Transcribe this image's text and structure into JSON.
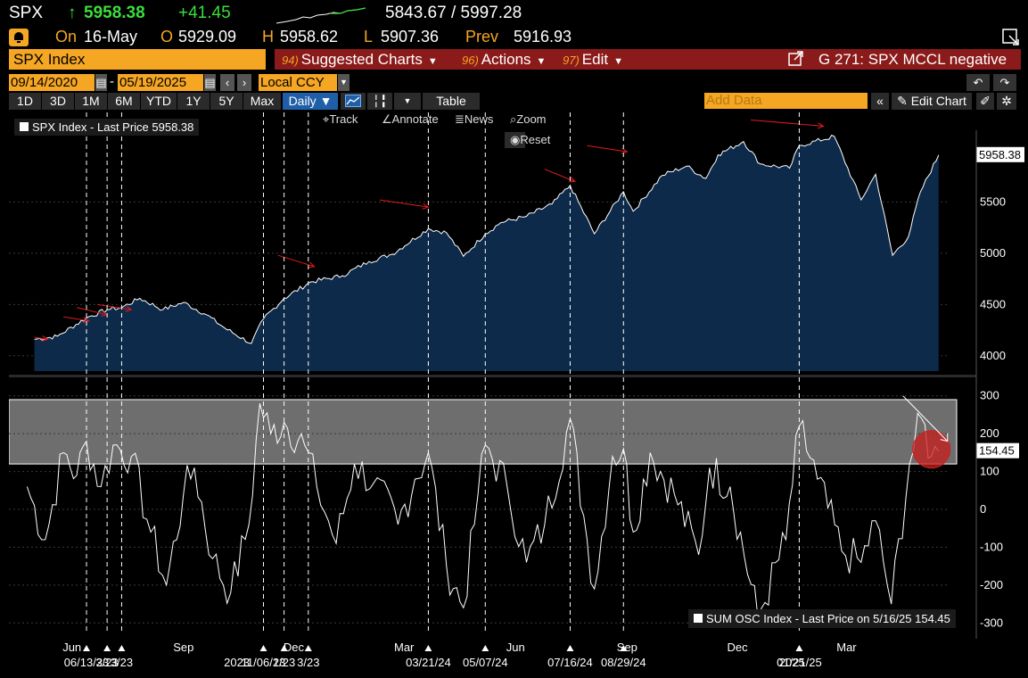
{
  "header": {
    "ticker": "SPX",
    "arrow": "↑",
    "last": "5958.38",
    "change": "+41.45",
    "range": "5843.67 / 5997.28",
    "on_label": "On",
    "date": "16-May",
    "open_label": "O",
    "open": "5929.09",
    "high_label": "H",
    "high": "5958.62",
    "low_label": "L",
    "low": "5907.36",
    "prev_label": "Prev",
    "prev": "5916.93"
  },
  "toolbar": {
    "security": "SPX Index",
    "menus": [
      {
        "num": "94)",
        "label": "Suggested Charts"
      },
      {
        "num": "96)",
        "label": "Actions"
      },
      {
        "num": "97)",
        "label": "Edit"
      }
    ],
    "chart_title": "G 271: SPX MCCL negative"
  },
  "dates": {
    "start": "09/14/2020",
    "sep": "-",
    "end": "05/19/2025",
    "currency": "Local CCY",
    "frequency": "Daily"
  },
  "periods": [
    "1D",
    "3D",
    "1M",
    "6M",
    "YTD",
    "1Y",
    "5Y",
    "Max"
  ],
  "table_label": "Table",
  "add_data_placeholder": "Add Data",
  "edit_chart": "Edit Chart",
  "tools": {
    "track": "Track",
    "annotate": "Annotate",
    "news": "News",
    "zoom": "Zoom",
    "reset": "Reset"
  },
  "legend_top": "SPX Index - Last Price 5958.38",
  "legend_bottom": "SUM OSC Index - Last Price on 5/16/25 154.45",
  "colors": {
    "accent": "#f5a623",
    "menu_bar": "#8b1a1a",
    "area_fill": "#0d2a4a",
    "arrows": "#e01b1b",
    "up": "#3ddc3d"
  },
  "chart_data": [
    {
      "type": "area",
      "series": [
        {
          "name": "SPX Index",
          "last": 5958.38
        }
      ],
      "y_ticks": [
        4000,
        4500,
        5000,
        5500
      ],
      "ylim": [
        3850,
        6200
      ],
      "last_label": "5958.38",
      "points": [
        [
          "2023-05-01",
          4160
        ],
        [
          "2023-05-20",
          4190
        ],
        [
          "2023-06-13",
          4370
        ],
        [
          "2023-06-30",
          4450
        ],
        [
          "2023-07-12",
          4470
        ],
        [
          "2023-07-27",
          4560
        ],
        [
          "2023-08-15",
          4450
        ],
        [
          "2023-09-01",
          4520
        ],
        [
          "2023-09-20",
          4400
        ],
        [
          "2023-10-05",
          4270
        ],
        [
          "2023-10-27",
          4120
        ],
        [
          "2023-11-06",
          4360
        ],
        [
          "2023-11-23",
          4560
        ],
        [
          "2023-12-15",
          4720
        ],
        [
          "2024-01-10",
          4780
        ],
        [
          "2024-02-01",
          4920
        ],
        [
          "2024-02-20",
          4990
        ],
        [
          "2024-03-21",
          5240
        ],
        [
          "2024-04-05",
          5200
        ],
        [
          "2024-04-19",
          4970
        ],
        [
          "2024-05-07",
          5190
        ],
        [
          "2024-05-20",
          5300
        ],
        [
          "2024-06-10",
          5360
        ],
        [
          "2024-07-01",
          5480
        ],
        [
          "2024-07-16",
          5660
        ],
        [
          "2024-08-05",
          5190
        ],
        [
          "2024-08-29",
          5600
        ],
        [
          "2024-09-06",
          5410
        ],
        [
          "2024-09-30",
          5760
        ],
        [
          "2024-10-20",
          5850
        ],
        [
          "2024-11-05",
          5730
        ],
        [
          "2024-11-15",
          5960
        ],
        [
          "2024-12-06",
          6090
        ],
        [
          "2024-12-20",
          5870
        ],
        [
          "2025-01-13",
          5830
        ],
        [
          "2025-01-21",
          6050
        ],
        [
          "2025-02-19",
          6140
        ],
        [
          "2025-03-13",
          5520
        ],
        [
          "2025-03-25",
          5770
        ],
        [
          "2025-04-08",
          4980
        ],
        [
          "2025-04-21",
          5160
        ],
        [
          "2025-05-01",
          5600
        ],
        [
          "2025-05-16",
          5958
        ]
      ],
      "arrows": [
        [
          "2023-05-01",
          4180,
          "2023-05-12",
          4160
        ],
        [
          "2023-05-25",
          4380,
          "2023-06-15",
          4340
        ],
        [
          "2023-06-05",
          4470,
          "2023-06-30",
          4400
        ],
        [
          "2023-06-22",
          4500,
          "2023-07-20",
          4450
        ],
        [
          "2023-11-18",
          4980,
          "2023-12-18",
          4870
        ],
        [
          "2024-02-10",
          5520,
          "2024-03-21",
          5450
        ],
        [
          "2024-06-25",
          5820,
          "2024-07-20",
          5700
        ],
        [
          "2024-07-30",
          6050,
          "2024-09-01",
          5990
        ],
        [
          "2024-12-12",
          6300,
          "2025-02-10",
          6240
        ]
      ]
    },
    {
      "type": "line",
      "series": [
        {
          "name": "SUM OSC Index",
          "last": 154.45
        }
      ],
      "y_ticks": [
        -300,
        -200,
        -100,
        0,
        100,
        200,
        300
      ],
      "ylim": [
        -330,
        330
      ],
      "last_label": "154.45",
      "band": [
        120,
        290
      ],
      "points": [
        [
          "2023-04-25",
          60
        ],
        [
          "2023-05-10",
          -80
        ],
        [
          "2023-05-25",
          150
        ],
        [
          "2023-06-05",
          90
        ],
        [
          "2023-06-13",
          180
        ],
        [
          "2023-06-25",
          60
        ],
        [
          "2023-07-05",
          170
        ],
        [
          "2023-07-20",
          140
        ],
        [
          "2023-08-05",
          -60
        ],
        [
          "2023-08-18",
          -200
        ],
        [
          "2023-09-01",
          40
        ],
        [
          "2023-09-10",
          110
        ],
        [
          "2023-09-25",
          -130
        ],
        [
          "2023-10-10",
          -220
        ],
        [
          "2023-10-25",
          -40
        ],
        [
          "2023-11-03",
          280
        ],
        [
          "2023-11-12",
          200
        ],
        [
          "2023-11-23",
          230
        ],
        [
          "2023-12-10",
          170
        ],
        [
          "2023-12-20",
          60
        ],
        [
          "2024-01-05",
          -90
        ],
        [
          "2024-01-20",
          120
        ],
        [
          "2024-02-05",
          70
        ],
        [
          "2024-02-25",
          -40
        ],
        [
          "2024-03-10",
          80
        ],
        [
          "2024-03-21",
          150
        ],
        [
          "2024-04-05",
          -150
        ],
        [
          "2024-04-19",
          -260
        ],
        [
          "2024-05-01",
          40
        ],
        [
          "2024-05-07",
          170
        ],
        [
          "2024-05-25",
          60
        ],
        [
          "2024-06-10",
          -140
        ],
        [
          "2024-06-25",
          -40
        ],
        [
          "2024-07-16",
          240
        ],
        [
          "2024-07-30",
          -80
        ],
        [
          "2024-08-05",
          -210
        ],
        [
          "2024-08-20",
          140
        ],
        [
          "2024-08-29",
          160
        ],
        [
          "2024-09-06",
          -60
        ],
        [
          "2024-09-20",
          150
        ],
        [
          "2024-10-10",
          40
        ],
        [
          "2024-10-30",
          -120
        ],
        [
          "2024-11-08",
          110
        ],
        [
          "2024-11-25",
          60
        ],
        [
          "2024-12-18",
          -290
        ],
        [
          "2025-01-10",
          -80
        ],
        [
          "2025-01-21",
          220
        ],
        [
          "2025-02-05",
          80
        ],
        [
          "2025-02-25",
          -110
        ],
        [
          "2025-03-13",
          -140
        ],
        [
          "2025-03-25",
          -30
        ],
        [
          "2025-04-07",
          -250
        ],
        [
          "2025-04-22",
          120
        ],
        [
          "2025-05-02",
          240
        ],
        [
          "2025-05-10",
          140
        ],
        [
          "2025-05-16",
          154
        ]
      ],
      "marker_end": [
        "2025-05-16",
        154
      ]
    }
  ],
  "x_axis": {
    "start": "2023-04-10",
    "end": "2025-05-25",
    "months": [
      [
        "2023-06-01",
        "Jun"
      ],
      [
        "2023-09-01",
        "Sep"
      ],
      [
        "2023-12-01",
        "Dec"
      ],
      [
        "2024-03-01",
        "Mar"
      ],
      [
        "2024-06-01",
        "Jun"
      ],
      [
        "2024-09-01",
        "Sep"
      ],
      [
        "2024-12-01",
        "Dec"
      ],
      [
        "2025-03-01",
        "Mar"
      ]
    ],
    "years": [
      [
        "2023-10-15",
        "2023"
      ],
      [
        "2025-01-15",
        "2025"
      ]
    ],
    "markers": [
      [
        "2023-06-13",
        "06/13/23"
      ],
      [
        "2023-06-30",
        "3/23"
      ],
      [
        "2023-07-12",
        "3/23"
      ],
      [
        "2023-11-06",
        "11/06/23"
      ],
      [
        "2023-11-23",
        "1/23"
      ],
      [
        "2023-12-13",
        "3/23"
      ],
      [
        "2024-03-21",
        "03/21/24"
      ],
      [
        "2024-05-07",
        "05/07/24"
      ],
      [
        "2024-07-16",
        "07/16/24"
      ],
      [
        "2024-08-29",
        "08/29/24"
      ],
      [
        "2025-01-21",
        "01/21/25"
      ]
    ],
    "left_label": "3"
  }
}
